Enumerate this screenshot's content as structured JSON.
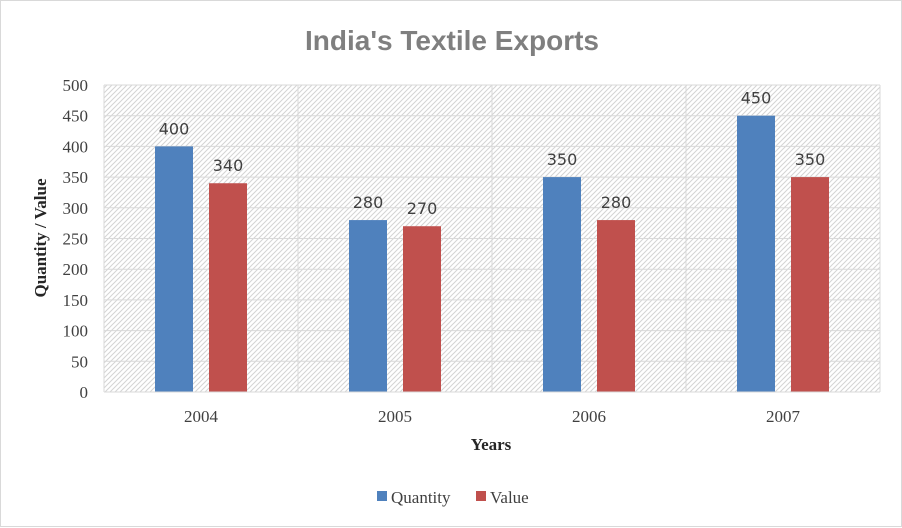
{
  "chart_data": {
    "type": "bar",
    "title": "India's Textile Exports",
    "xlabel": "Years",
    "ylabel": "Quantity / Value",
    "categories": [
      "2004",
      "2005",
      "2006",
      "2007"
    ],
    "series": [
      {
        "name": "Quantity",
        "values": [
          400,
          280,
          350,
          450
        ],
        "color": "#4f81bd"
      },
      {
        "name": "Value",
        "values": [
          340,
          270,
          280,
          350
        ],
        "color": "#c0504d"
      }
    ],
    "ylim": [
      0,
      500
    ],
    "yticks": [
      "0",
      "50",
      "100",
      "150",
      "200",
      "250",
      "300",
      "350",
      "400",
      "450",
      "500"
    ],
    "grid": true,
    "legend_position": "bottom",
    "data_labels": true
  }
}
